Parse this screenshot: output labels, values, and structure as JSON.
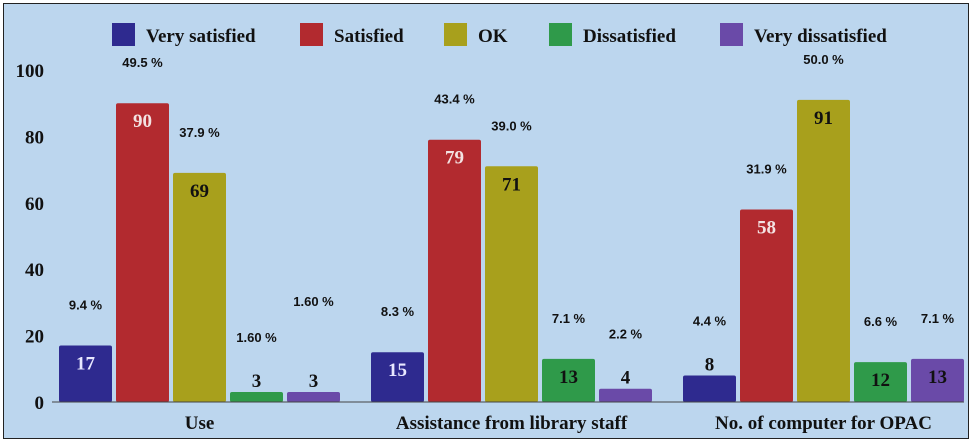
{
  "chart_data": {
    "type": "bar",
    "categories": [
      "Use",
      "Assistance from library staff",
      "No. of computer for OPAC"
    ],
    "ylim": [
      0,
      100
    ],
    "yticks": [
      0,
      20,
      40,
      60,
      80,
      100
    ],
    "grid": false,
    "legend_position": "top",
    "series": [
      {
        "name": "Very satisfied",
        "color": "#2e2a8f",
        "label_color": "#e8e8ff",
        "values": [
          17,
          15,
          8
        ],
        "percent_labels": [
          "9.4 %",
          "8.3 %",
          "4.4 %"
        ]
      },
      {
        "name": "Satisfied",
        "color": "#b22a2f",
        "label_color": "#f3e2e2",
        "values": [
          90,
          79,
          58
        ],
        "percent_labels": [
          "49.5 %",
          "43.4 %",
          "31.9 %"
        ]
      },
      {
        "name": "OK",
        "color": "#a8a01c",
        "label_color": "#111111",
        "values": [
          69,
          71,
          91
        ],
        "percent_labels": [
          "37.9 %",
          "39.0 %",
          "50.0 %"
        ]
      },
      {
        "name": "Dissatisfied",
        "color": "#2f9a4a",
        "label_color": "#111111",
        "values": [
          3,
          13,
          12
        ],
        "percent_labels": [
          "1.60 %",
          "7.1 %",
          "6.6 %"
        ]
      },
      {
        "name": "Very dissatisfied",
        "color": "#6a4aa8",
        "label_color": "#111111",
        "values": [
          3,
          4,
          13
        ],
        "percent_labels": [
          "1.60 %",
          "2.2 %",
          "7.1 %"
        ]
      }
    ]
  }
}
